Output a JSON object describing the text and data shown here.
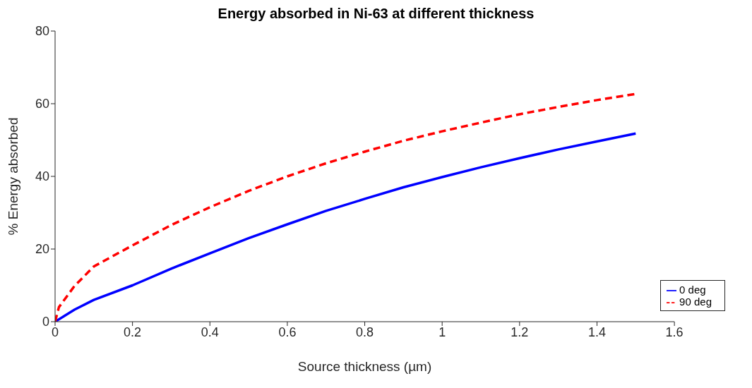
{
  "chart_data": {
    "type": "line",
    "title": "Energy absorbed in Ni-63 at different thickness",
    "xlabel": "Source thickness (µm)",
    "ylabel": "% Energy absorbed",
    "xlim": [
      0,
      1.6
    ],
    "xticks": [
      0,
      0.2,
      0.4,
      0.6,
      0.8,
      1,
      1.2,
      1.4,
      1.6
    ],
    "ylim": [
      0,
      80
    ],
    "yticks": [
      0,
      20,
      40,
      60,
      80
    ],
    "grid": false,
    "legend": "bottom right",
    "series": [
      {
        "name": "0 deg",
        "color": "#0000ff",
        "line_style": "solid",
        "x": [
          0,
          0.05,
          0.1,
          0.2,
          0.3,
          0.4,
          0.5,
          0.6,
          0.7,
          0.8,
          0.9,
          1.0,
          1.1,
          1.2,
          1.3,
          1.4,
          1.5
        ],
        "values": [
          0,
          3.3,
          6,
          10,
          14.6,
          18.8,
          23,
          26.8,
          30.5,
          33.8,
          37,
          39.8,
          42.5,
          45,
          47.4,
          49.6,
          51.8
        ]
      },
      {
        "name": "90 deg",
        "color": "#ff0000",
        "line_style": "dashed",
        "x": [
          0,
          0.01,
          0.05,
          0.1,
          0.2,
          0.3,
          0.4,
          0.5,
          0.6,
          0.7,
          0.8,
          0.9,
          1.0,
          1.1,
          1.2,
          1.3,
          1.4,
          1.5
        ],
        "values": [
          0,
          4,
          9.8,
          15.2,
          21,
          26.6,
          31.5,
          36,
          40,
          43.6,
          46.8,
          49.8,
          52.4,
          54.8,
          57.1,
          59.1,
          61,
          62.7
        ]
      }
    ]
  }
}
